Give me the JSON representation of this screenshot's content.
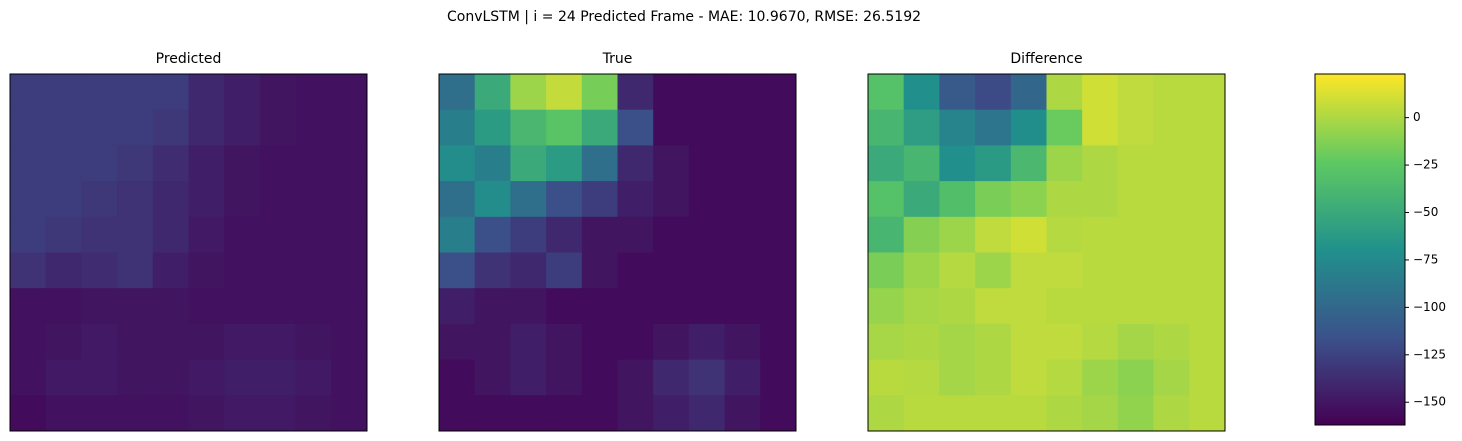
{
  "title": "ConvLSTM | i = 24 Predicted Frame - MAE: 10.9670, RMSE: 26.5192",
  "chart_data": [
    {
      "type": "heatmap",
      "title": "Predicted",
      "colormap": "viridis",
      "clim": [
        0,
        165
      ],
      "values": [
        [
          30,
          30,
          30,
          30,
          30,
          20,
          15,
          10,
          8,
          8
        ],
        [
          30,
          30,
          30,
          30,
          28,
          20,
          15,
          10,
          8,
          8
        ],
        [
          30,
          30,
          30,
          28,
          22,
          15,
          10,
          8,
          8,
          8
        ],
        [
          30,
          30,
          28,
          25,
          20,
          15,
          10,
          8,
          8,
          8
        ],
        [
          30,
          28,
          25,
          25,
          20,
          12,
          8,
          8,
          8,
          8
        ],
        [
          25,
          20,
          22,
          25,
          15,
          10,
          8,
          8,
          8,
          8
        ],
        [
          8,
          8,
          10,
          10,
          10,
          8,
          8,
          8,
          8,
          8
        ],
        [
          8,
          10,
          12,
          10,
          10,
          10,
          12,
          12,
          10,
          8
        ],
        [
          8,
          12,
          12,
          10,
          10,
          12,
          15,
          15,
          12,
          8
        ],
        [
          5,
          8,
          8,
          8,
          8,
          10,
          12,
          12,
          10,
          8
        ]
      ]
    },
    {
      "type": "heatmap",
      "title": "True",
      "colormap": "viridis",
      "clim": [
        0,
        165
      ],
      "values": [
        [
          60,
          100,
          140,
          150,
          130,
          20,
          5,
          5,
          5,
          5
        ],
        [
          70,
          90,
          110,
          120,
          100,
          40,
          5,
          5,
          5,
          5
        ],
        [
          80,
          70,
          100,
          90,
          60,
          20,
          10,
          5,
          5,
          5
        ],
        [
          60,
          80,
          60,
          40,
          30,
          15,
          10,
          5,
          5,
          5
        ],
        [
          70,
          40,
          30,
          20,
          10,
          10,
          5,
          5,
          5,
          5
        ],
        [
          40,
          25,
          20,
          30,
          10,
          5,
          5,
          5,
          5,
          5
        ],
        [
          15,
          10,
          10,
          5,
          5,
          5,
          5,
          5,
          5,
          5
        ],
        [
          10,
          10,
          15,
          10,
          5,
          5,
          10,
          15,
          10,
          5
        ],
        [
          5,
          10,
          15,
          10,
          5,
          10,
          20,
          25,
          15,
          5
        ],
        [
          5,
          5,
          5,
          5,
          5,
          10,
          15,
          20,
          10,
          5
        ]
      ]
    },
    {
      "type": "heatmap",
      "title": "Difference",
      "colormap": "viridis",
      "clim": [
        -162,
        23
      ],
      "colorbar": true,
      "cticks": [
        0,
        {
          "value": -25,
          "label": "−25"
        },
        {
          "value": -50,
          "label": "−50"
        },
        {
          "value": -75,
          "label": "−75"
        },
        {
          "value": -100,
          "label": "−100"
        },
        {
          "value": -125,
          "label": "−125"
        },
        {
          "value": -150,
          "label": "−150"
        }
      ],
      "values": [
        [
          -30,
          -70,
          -110,
          -120,
          -100,
          0,
          10,
          5,
          3,
          3
        ],
        [
          -40,
          -60,
          -80,
          -90,
          -72,
          -20,
          10,
          5,
          3,
          3
        ],
        [
          -50,
          -40,
          -70,
          -62,
          -38,
          -5,
          0,
          3,
          3,
          3
        ],
        [
          -30,
          -50,
          -32,
          -15,
          -10,
          0,
          0,
          3,
          3,
          3
        ],
        [
          -40,
          -12,
          -5,
          5,
          10,
          2,
          3,
          3,
          3,
          3
        ],
        [
          -15,
          -5,
          2,
          -5,
          5,
          5,
          3,
          3,
          3,
          3
        ],
        [
          -7,
          -2,
          0,
          5,
          5,
          3,
          3,
          3,
          3,
          3
        ],
        [
          -2,
          0,
          -3,
          0,
          5,
          5,
          2,
          -3,
          0,
          3
        ],
        [
          3,
          2,
          -3,
          0,
          5,
          2,
          -5,
          -10,
          -3,
          3
        ],
        [
          0,
          3,
          3,
          3,
          3,
          0,
          -3,
          -8,
          0,
          3
        ]
      ]
    }
  ]
}
